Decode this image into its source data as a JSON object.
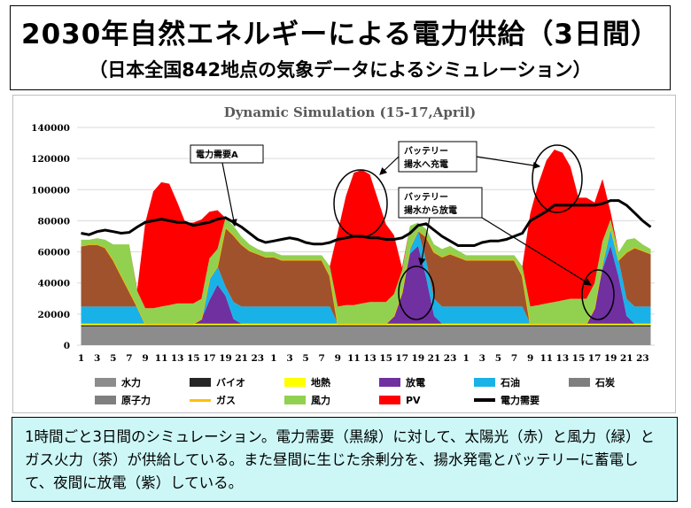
{
  "header": {
    "title": "2030年自然エネルギーによる電力供給（3日間）",
    "subtitle": "（日本全国842地点の気象データによるシミュレーション）"
  },
  "caption": "1時間ごと3日間のシミュレーション。電力需要（黒線）に対して、太陽光（赤）と風力（緑）とガス火力（茶）が供給している。また昼間に生じた余剰分を、揚水発電とバッテリーに蓄電して、夜間に放電（紫）している。",
  "annotations": {
    "demand": "電力需要A",
    "charge_line1": "バッテリー",
    "charge_line2": "揚水へ充電",
    "discharge_line1": "バッテリー",
    "discharge_line2": "揚水から放電"
  },
  "colors": {
    "nuclear": "#7f7f7f",
    "hydro": "#8c8c8c",
    "biomass": "#262626",
    "geothermal": "#ffff00",
    "oil": "#19b2e8",
    "coal": "#7f7f7f",
    "gas": "#a0522d",
    "gas_line": "#ffc000",
    "wind": "#92d050",
    "pv": "#ff0000",
    "discharge": "#7030a0",
    "demand": "#000000"
  },
  "chart_data": {
    "type": "area",
    "title": "Dynamic Simulation  (15-17,April)",
    "xlabel": "",
    "ylabel": "",
    "ylim": [
      0,
      140000
    ],
    "yticks": [
      0,
      20000,
      40000,
      60000,
      80000,
      100000,
      120000,
      140000
    ],
    "x": [
      1,
      2,
      3,
      4,
      5,
      6,
      7,
      8,
      9,
      10,
      11,
      12,
      13,
      14,
      15,
      16,
      17,
      18,
      19,
      20,
      21,
      22,
      23,
      24,
      1,
      2,
      3,
      4,
      5,
      6,
      7,
      8,
      9,
      10,
      11,
      12,
      13,
      14,
      15,
      16,
      17,
      18,
      19,
      20,
      21,
      22,
      23,
      24,
      1,
      2,
      3,
      4,
      5,
      6,
      7,
      8,
      9,
      10,
      11,
      12,
      13,
      14,
      15,
      16,
      17,
      18,
      19,
      20,
      21,
      22,
      23,
      24
    ],
    "x_tick_labels": [
      "1",
      "3",
      "5",
      "7",
      "9",
      "11",
      "13",
      "15",
      "17",
      "19",
      "21",
      "23",
      "1",
      "3",
      "5",
      "7",
      "9",
      "11",
      "13",
      "15",
      "17",
      "19",
      "21",
      "23",
      "1",
      "3",
      "5",
      "7",
      "9",
      "11",
      "13",
      "15",
      "17",
      "19",
      "21",
      "23"
    ],
    "grid": true,
    "legend_position": "bottom",
    "legend": [
      "水力",
      "バイオ",
      "地熱",
      "放電",
      "石油",
      "石炭",
      "原子力",
      "ガス",
      "風力",
      "PV",
      "電力需要"
    ],
    "series": [
      {
        "name": "原子力",
        "values": [
          0,
          0,
          0,
          0,
          0,
          0,
          0,
          0,
          0,
          0,
          0,
          0,
          0,
          0,
          0,
          0,
          0,
          0,
          0,
          0,
          0,
          0,
          0,
          0,
          0,
          0,
          0,
          0,
          0,
          0,
          0,
          0,
          0,
          0,
          0,
          0,
          0,
          0,
          0,
          0,
          0,
          0,
          0,
          0,
          0,
          0,
          0,
          0,
          0,
          0,
          0,
          0,
          0,
          0,
          0,
          0,
          0,
          0,
          0,
          0,
          0,
          0,
          0,
          0,
          0,
          0,
          0,
          0,
          0,
          0,
          0,
          0
        ]
      },
      {
        "name": "水力",
        "values": [
          12000,
          12000,
          12000,
          12000,
          12000,
          12000,
          12000,
          12000,
          12000,
          12000,
          12000,
          12000,
          12000,
          12000,
          12000,
          12000,
          12000,
          12000,
          12000,
          12000,
          12000,
          12000,
          12000,
          12000,
          12000,
          12000,
          12000,
          12000,
          12000,
          12000,
          12000,
          12000,
          12000,
          12000,
          12000,
          12000,
          12000,
          12000,
          12000,
          12000,
          12000,
          12000,
          12000,
          12000,
          12000,
          12000,
          12000,
          12000,
          12000,
          12000,
          12000,
          12000,
          12000,
          12000,
          12000,
          12000,
          12000,
          12000,
          12000,
          12000,
          12000,
          12000,
          12000,
          12000,
          12000,
          12000,
          12000,
          12000,
          12000,
          12000,
          12000,
          12000
        ]
      },
      {
        "name": "バイオ",
        "values": [
          800,
          800,
          800,
          800,
          800,
          800,
          800,
          800,
          800,
          800,
          800,
          800,
          800,
          800,
          800,
          800,
          800,
          800,
          800,
          800,
          800,
          800,
          800,
          800,
          800,
          800,
          800,
          800,
          800,
          800,
          800,
          800,
          800,
          800,
          800,
          800,
          800,
          800,
          800,
          800,
          800,
          800,
          800,
          800,
          800,
          800,
          800,
          800,
          800,
          800,
          800,
          800,
          800,
          800,
          800,
          800,
          800,
          800,
          800,
          800,
          800,
          800,
          800,
          800,
          800,
          800,
          800,
          800,
          800,
          800,
          800,
          800
        ]
      },
      {
        "name": "地熱",
        "values": [
          1000,
          1000,
          1000,
          1000,
          1000,
          1000,
          1000,
          1000,
          1000,
          1000,
          1000,
          1000,
          1000,
          1000,
          1000,
          1000,
          1000,
          1000,
          1000,
          1000,
          1000,
          1000,
          1000,
          1000,
          1000,
          1000,
          1000,
          1000,
          1000,
          1000,
          1000,
          1000,
          1000,
          1000,
          1000,
          1000,
          1000,
          1000,
          1000,
          1000,
          1000,
          1000,
          1000,
          1000,
          1000,
          1000,
          1000,
          1000,
          1000,
          1000,
          1000,
          1000,
          1000,
          1000,
          1000,
          1000,
          1000,
          1000,
          1000,
          1000,
          1000,
          1000,
          1000,
          1000,
          1000,
          1000,
          1000,
          1000,
          1000,
          1000,
          1000,
          1000
        ]
      },
      {
        "name": "放電",
        "values": [
          0,
          0,
          0,
          0,
          0,
          0,
          0,
          0,
          0,
          0,
          0,
          0,
          0,
          0,
          0,
          3000,
          15000,
          25000,
          18000,
          3000,
          0,
          0,
          0,
          0,
          0,
          0,
          0,
          0,
          0,
          0,
          0,
          0,
          0,
          0,
          0,
          0,
          0,
          0,
          0,
          5000,
          20000,
          45000,
          50000,
          30000,
          5000,
          0,
          0,
          0,
          0,
          0,
          0,
          0,
          0,
          0,
          0,
          0,
          0,
          0,
          0,
          0,
          0,
          0,
          0,
          0,
          10000,
          35000,
          50000,
          30000,
          5000,
          0,
          0,
          0
        ]
      },
      {
        "name": "石油",
        "values": [
          11000,
          11000,
          11000,
          11000,
          11000,
          11000,
          11000,
          11000,
          0,
          0,
          0,
          0,
          0,
          0,
          0,
          0,
          14000,
          12000,
          6000,
          11000,
          11000,
          11000,
          11000,
          11000,
          11000,
          11000,
          11000,
          11000,
          11000,
          11000,
          11000,
          11000,
          0,
          0,
          0,
          0,
          0,
          0,
          0,
          0,
          0,
          4000,
          10000,
          11000,
          11000,
          11000,
          11000,
          11000,
          11000,
          11000,
          11000,
          11000,
          11000,
          11000,
          11000,
          11000,
          0,
          0,
          0,
          0,
          0,
          0,
          0,
          0,
          0,
          4000,
          12000,
          11000,
          11000,
          11000,
          11000,
          11000
        ]
      },
      {
        "name": "石炭",
        "values": [
          0,
          0,
          0,
          0,
          0,
          0,
          0,
          0,
          0,
          0,
          0,
          0,
          0,
          0,
          0,
          0,
          0,
          0,
          0,
          0,
          0,
          0,
          0,
          0,
          0,
          0,
          0,
          0,
          0,
          0,
          0,
          0,
          0,
          0,
          0,
          0,
          0,
          0,
          0,
          0,
          0,
          0,
          0,
          0,
          0,
          0,
          0,
          0,
          0,
          0,
          0,
          0,
          0,
          0,
          0,
          0,
          0,
          0,
          0,
          0,
          0,
          0,
          0,
          0,
          0,
          0,
          0,
          0,
          0,
          0,
          0,
          0
        ]
      },
      {
        "name": "ガス",
        "values": [
          39000,
          40000,
          40000,
          38000,
          30000,
          20000,
          10000,
          0,
          0,
          0,
          0,
          0,
          0,
          0,
          0,
          0,
          0,
          0,
          38000,
          43000,
          40000,
          36000,
          34000,
          32000,
          32000,
          30000,
          30000,
          30000,
          30000,
          30000,
          30000,
          20000,
          0,
          0,
          0,
          0,
          0,
          0,
          0,
          0,
          0,
          0,
          0,
          15000,
          30000,
          32000,
          34000,
          32000,
          30000,
          30000,
          30000,
          30000,
          30000,
          30000,
          30000,
          20000,
          0,
          0,
          0,
          0,
          0,
          0,
          0,
          0,
          0,
          0,
          0,
          0,
          30000,
          38000,
          36000,
          34000
        ]
      },
      {
        "name": "風力",
        "values": [
          4000,
          3000,
          4000,
          5000,
          10000,
          20000,
          30000,
          10000,
          10000,
          10000,
          11000,
          12000,
          13000,
          13000,
          13000,
          13000,
          13000,
          11000,
          6000,
          6000,
          5000,
          4000,
          3000,
          3000,
          3000,
          3000,
          3000,
          3000,
          3000,
          3000,
          3000,
          6000,
          11000,
          12000,
          12000,
          13000,
          14000,
          14000,
          14000,
          14000,
          14000,
          14000,
          5000,
          5000,
          5000,
          5000,
          5000,
          4000,
          3000,
          3000,
          3000,
          3000,
          3000,
          3000,
          3000,
          6000,
          11000,
          12000,
          13000,
          14000,
          15000,
          16000,
          16000,
          16000,
          16000,
          14000,
          5000,
          5000,
          8000,
          6000,
          4000,
          3000
        ]
      },
      {
        "name": "PV",
        "values": [
          0,
          0,
          0,
          0,
          0,
          0,
          0,
          1000,
          55000,
          75000,
          80000,
          78000,
          65000,
          52000,
          52000,
          51000,
          30000,
          25000,
          0,
          0,
          0,
          0,
          0,
          0,
          0,
          0,
          0,
          0,
          0,
          0,
          0,
          0,
          48000,
          70000,
          85000,
          86000,
          82000,
          66000,
          50000,
          38000,
          2000,
          0,
          0,
          0,
          0,
          0,
          0,
          0,
          0,
          0,
          0,
          0,
          0,
          0,
          0,
          0,
          60000,
          78000,
          92000,
          98000,
          95000,
          85000,
          65000,
          65000,
          52000,
          40000,
          5000,
          0,
          0,
          0,
          0,
          0
        ]
      },
      {
        "name": "電力需要",
        "values": [
          72000,
          71000,
          73000,
          74000,
          73000,
          72000,
          72500,
          76000,
          79000,
          80000,
          81000,
          80000,
          79000,
          79000,
          77000,
          78000,
          79000,
          81000,
          82000,
          79000,
          76000,
          72000,
          68000,
          66000,
          67000,
          68000,
          69000,
          68000,
          66000,
          65000,
          65000,
          66000,
          68000,
          69000,
          70000,
          70000,
          69000,
          69000,
          68000,
          68000,
          69000,
          72000,
          77000,
          78000,
          74000,
          70000,
          67000,
          64000,
          64000,
          64000,
          66000,
          67000,
          67000,
          68000,
          70000,
          72000,
          80000,
          83000,
          86000,
          90000,
          90000,
          90000,
          90000,
          90000,
          90000,
          91000,
          93000,
          93000,
          90000,
          85000,
          80000,
          76000
        ]
      }
    ]
  }
}
